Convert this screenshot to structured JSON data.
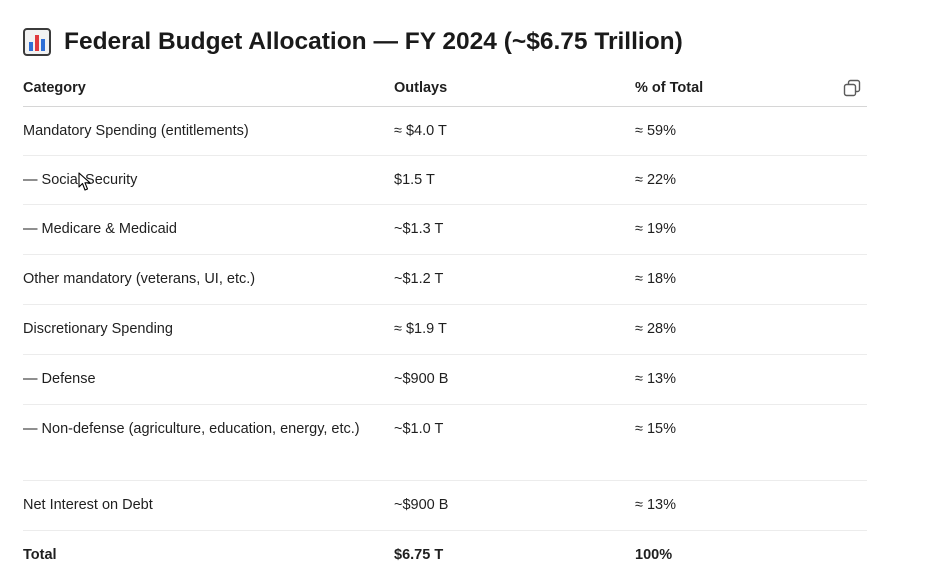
{
  "heading": {
    "icon": "bar-chart-icon",
    "title": "Federal Budget Allocation — FY 2024 (~$6.75 Trillion)"
  },
  "table": {
    "columns": {
      "category": "Category",
      "outlays": "Outlays",
      "percent": "% of Total"
    },
    "copy_icon": "copy-icon",
    "rows": [
      {
        "category": "Mandatory Spending (entitlements)",
        "outlays": "≈ $4.0 T",
        "percent": "≈ 59%"
      },
      {
        "category": "— Social Security",
        "outlays": "$1.5 T",
        "percent": "≈ 22%"
      },
      {
        "category": "— Medicare & Medicaid",
        "outlays": "~$1.3 T",
        "percent": "≈ 19%"
      },
      {
        "category": "Other mandatory (veterans, UI, etc.)",
        "outlays": "~$1.2 T",
        "percent": "≈ 18%"
      },
      {
        "category": "Discretionary Spending",
        "outlays": "≈ $1.9 T",
        "percent": "≈ 28%"
      },
      {
        "category": "— Defense",
        "outlays": "~$900 B",
        "percent": "≈ 13%"
      },
      {
        "category": "— Non-defense (agriculture, education, energy, etc.)",
        "outlays": "~$1.0 T",
        "percent": "≈ 15%"
      },
      {
        "category": "Net Interest on Debt",
        "outlays": "~$900 B",
        "percent": "≈ 13%"
      },
      {
        "category": "Total",
        "outlays": "$6.75 T",
        "percent": "100%"
      }
    ]
  },
  "colors": {
    "text": "#1f1f1f",
    "divider": "#ececec",
    "header_divider": "#d6d6d6",
    "icon_blue": "#2f6fd6",
    "icon_red": "#e0393e",
    "icon_frame": "#3b3b3b"
  }
}
